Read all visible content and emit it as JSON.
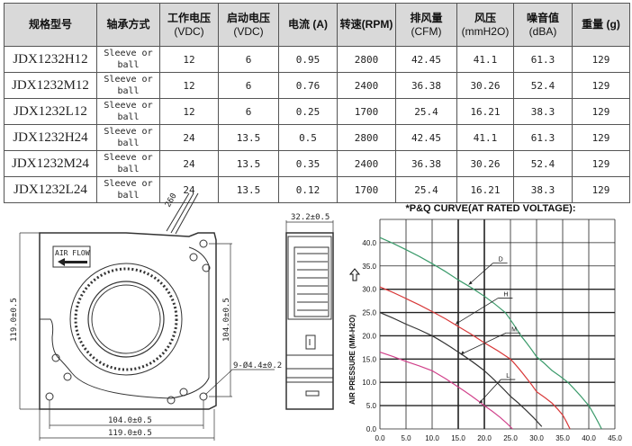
{
  "table": {
    "headers": [
      {
        "l1": "规格型号",
        "l2": ""
      },
      {
        "l1": "轴承方式",
        "l2": ""
      },
      {
        "l1": "工作电压",
        "l2": "(VDC)"
      },
      {
        "l1": "启动电压",
        "l2": "(VDC)"
      },
      {
        "l1": "电流 (A)",
        "l2": ""
      },
      {
        "l1": "转速(RPM)",
        "l2": ""
      },
      {
        "l1": "排风量",
        "l2": "(CFM)"
      },
      {
        "l1": "风压",
        "l2": "(mmH2O)"
      },
      {
        "l1": "噪音值",
        "l2": "(dBA)"
      },
      {
        "l1": "重量 (g)",
        "l2": ""
      }
    ],
    "rows": [
      [
        "JDX1232H12",
        "Sleeve or ball",
        "12",
        "6",
        "0.95",
        "2800",
        "42.45",
        "41.1",
        "61.3",
        "129"
      ],
      [
        "JDX1232M12",
        "Sleeve or ball",
        "12",
        "6",
        "0.76",
        "2400",
        "36.38",
        "30.26",
        "52.4",
        "129"
      ],
      [
        "JDX1232L12",
        "Sleeve or ball",
        "12",
        "6",
        "0.25",
        "1700",
        "25.4",
        "16.21",
        "38.3",
        "129"
      ],
      [
        "JDX1232H24",
        "Sleeve or ball",
        "24",
        "13.5",
        "0.5",
        "2800",
        "42.45",
        "41.1",
        "61.3",
        "129"
      ],
      [
        "JDX1232M24",
        "Sleeve or ball",
        "24",
        "13.5",
        "0.35",
        "2400",
        "36.38",
        "30.26",
        "52.4",
        "129"
      ],
      [
        "JDX1232L24",
        "Sleeve or ball",
        "24",
        "13.5",
        "0.12",
        "1700",
        "25.4",
        "16.21",
        "38.3",
        "129"
      ]
    ]
  },
  "drawing": {
    "airflow_label": "AIR FLOW",
    "dim_height": "119.0±0.5",
    "dim_hole_v": "104.0±0.5",
    "dim_hole_h": "104.0±0.5",
    "dim_width": "119.0±0.5",
    "dim_holes": "9-Ø4.4±0.2",
    "dim_depth": "32.2±0.5",
    "dim_lead": "260"
  },
  "chart_data": {
    "type": "line",
    "title": "*P&Q CURVE(AT RATED VOLTAGE):",
    "ylabel": "AIR PRESSURE (MM-H2O)",
    "xlabel": "",
    "xlim": [
      0,
      45
    ],
    "ylim": [
      0,
      45
    ],
    "xticks": [
      "0.0",
      "5.0",
      "10.0",
      "15.0",
      "20.0",
      "25.0",
      "30.0",
      "35.0",
      "40.0",
      "45.0"
    ],
    "yticks": [
      "0.0",
      "5.0",
      "10.0",
      "15.0",
      "20.0",
      "25.0",
      "30.0",
      "35.0",
      "40.0"
    ],
    "grid": true,
    "series": [
      {
        "name": "D",
        "color": "#3a9a6a",
        "x": [
          0,
          5,
          10,
          15,
          20,
          24,
          27,
          30,
          33,
          36,
          40,
          42.45
        ],
        "y": [
          41.1,
          38.5,
          35.5,
          32,
          28.5,
          25,
          20,
          15.5,
          12.5,
          10,
          5,
          0
        ],
        "label_at": [
          22,
          36
        ],
        "arrow_to": [
          17,
          31
        ]
      },
      {
        "name": "H",
        "color": "#d83838",
        "x": [
          0,
          5,
          10,
          15,
          20,
          25,
          28,
          30,
          33,
          35,
          36.4
        ],
        "y": [
          30.5,
          28,
          25.2,
          22,
          18.5,
          15,
          11,
          8,
          5.5,
          3,
          0
        ],
        "label_at": [
          23,
          28.5
        ],
        "arrow_to": [
          14.5,
          22.5
        ]
      },
      {
        "name": "M",
        "color": "#333333",
        "x": [
          0,
          5,
          10,
          15,
          20,
          25,
          28,
          31
        ],
        "y": [
          25,
          22.5,
          20,
          16.5,
          12.5,
          7,
          4,
          0.5
        ],
        "label_at": [
          24.5,
          21
        ],
        "arrow_to": [
          15.5,
          16
        ]
      },
      {
        "name": "L",
        "color": "#d0408a",
        "x": [
          0,
          5,
          10,
          15,
          20,
          23,
          25.4
        ],
        "y": [
          16.5,
          14.5,
          12.5,
          9,
          5,
          2.5,
          0
        ],
        "label_at": [
          23.5,
          11
        ],
        "arrow_to": [
          19,
          5.5
        ]
      }
    ]
  }
}
